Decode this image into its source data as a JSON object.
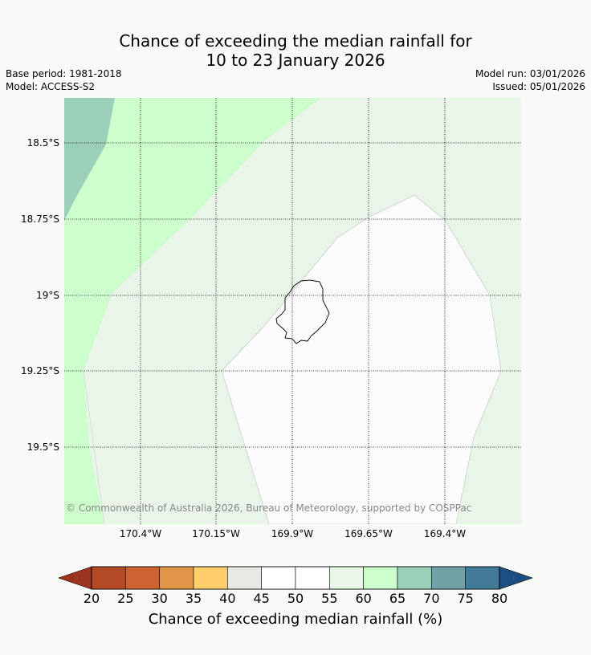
{
  "title_line1": "Chance of exceeding the median rainfall for",
  "title_line2": "10 to 23 January 2026",
  "base_period": "Base period: 1981-2018",
  "model": "Model: ACCESS-S2",
  "model_run": "Model run: 03/01/2026",
  "issued": "Issued: 05/01/2026",
  "copyright": "© Commonwealth of Australia 2026, Bureau of Meteorology, supported by COSPPac",
  "lat_labels": [
    "18.5°S",
    "18.75°S",
    "19°S",
    "19.25°S",
    "19.5°S"
  ],
  "lon_labels": [
    "170.4°W",
    "170.15°W",
    "169.9°W",
    "169.65°W",
    "169.4°W"
  ],
  "colorbar": {
    "title": "Chance of exceeding median rainfall (%)",
    "ticks": [
      "20",
      "25",
      "30",
      "35",
      "40",
      "45",
      "50",
      "55",
      "60",
      "65",
      "70",
      "75",
      "80"
    ],
    "colors": [
      "#b34a26",
      "#cd6332",
      "#e09548",
      "#fece6a",
      "#e8e9e5",
      "#ffffff",
      "#ffffff",
      "#e9f5e9",
      "#ccffcc",
      "#9ccfba",
      "#6fa3a7",
      "#427a98"
    ],
    "under_color": "#9b3420",
    "over_color": "#1a4e84"
  },
  "map_colors": {
    "c55_60": "#e9f5e9",
    "c60_65": "#ccffcc",
    "c65_70": "#9ccfba",
    "c50_55": "#fbfcfb"
  }
}
